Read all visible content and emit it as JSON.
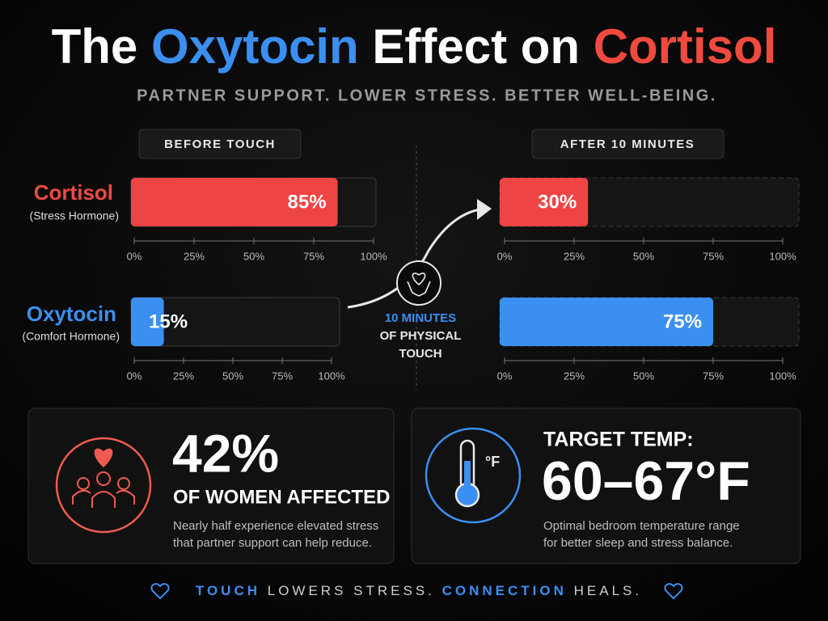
{
  "title": {
    "parts": [
      "The",
      "Oxytocin",
      "Effect on",
      "Cortisol"
    ]
  },
  "subtitle": "PARTNER SUPPORT. LOWER STRESS. BETTER WELL-BEING.",
  "columns": [
    "BEFORE TOUCH",
    "AFTER 10 MINUTES"
  ],
  "rows": [
    {
      "name": "Cortisol",
      "note": "(Stress Hormone)"
    },
    {
      "name": "Oxytocin",
      "note": "(Comfort Hormone)"
    }
  ],
  "chart_data": [
    {
      "type": "bar",
      "values": [
        85
      ],
      "value_labels": [
        "85%"
      ],
      "color": "#ef4444",
      "xlim": [
        0,
        100
      ],
      "xticks": [
        {
          "value": 0,
          "label": "0%"
        },
        {
          "value": 25,
          "label": "25%"
        },
        {
          "value": 50,
          "label": "50%"
        },
        {
          "value": 75,
          "label": "75%"
        },
        {
          "value": 100,
          "label": "100%"
        }
      ]
    },
    {
      "type": "bar",
      "values": [
        15
      ],
      "value_labels": [
        "15%"
      ],
      "color": "#3b8ff0",
      "xlim": [
        0,
        100
      ],
      "xticks": [
        {
          "value": 0,
          "label": "0%"
        },
        {
          "value": 25,
          "label": "25%"
        },
        {
          "value": 50,
          "label": "50%"
        },
        {
          "value": 75,
          "label": "75%"
        },
        {
          "value": 100,
          "label": "100%"
        }
      ]
    },
    {
      "type": "bar",
      "values": [
        30
      ],
      "value_labels": [
        "30%"
      ],
      "color": "#ef4444",
      "xlim": [
        0,
        100
      ],
      "xticks": [
        {
          "value": 0,
          "label": "0%"
        },
        {
          "value": 25,
          "label": "25%"
        },
        {
          "value": 50,
          "label": "50%"
        },
        {
          "value": 75,
          "label": "75%"
        },
        {
          "value": 100,
          "label": "100%"
        }
      ]
    },
    {
      "type": "bar",
      "values": [
        75
      ],
      "value_labels": [
        "75%"
      ],
      "color": "#3b8ff0",
      "xlim": [
        0,
        100
      ],
      "xticks": [
        {
          "value": 0,
          "label": "0%"
        },
        {
          "value": 25,
          "label": "25%"
        },
        {
          "value": 50,
          "label": "50%"
        },
        {
          "value": 75,
          "label": "75%"
        },
        {
          "value": 100,
          "label": "100%"
        }
      ]
    }
  ],
  "center_note": [
    "10 MINUTES",
    "OF PHYSICAL",
    "TOUCH"
  ],
  "cards": [
    {
      "stat": "42%",
      "headline": "OF WOMEN AFFECTED",
      "text": [
        "Nearly half experience elevated stress",
        "that partner support can help reduce."
      ]
    },
    {
      "icon_label": "°F",
      "headline": "TARGET TEMP:",
      "stat": "60–67°F",
      "text": [
        "Optimal bedroom temperature range",
        "for better sleep and stress balance."
      ]
    }
  ],
  "footer": [
    "TOUCH",
    "LOWERS STRESS.",
    "CONNECTION",
    "HEALS."
  ]
}
